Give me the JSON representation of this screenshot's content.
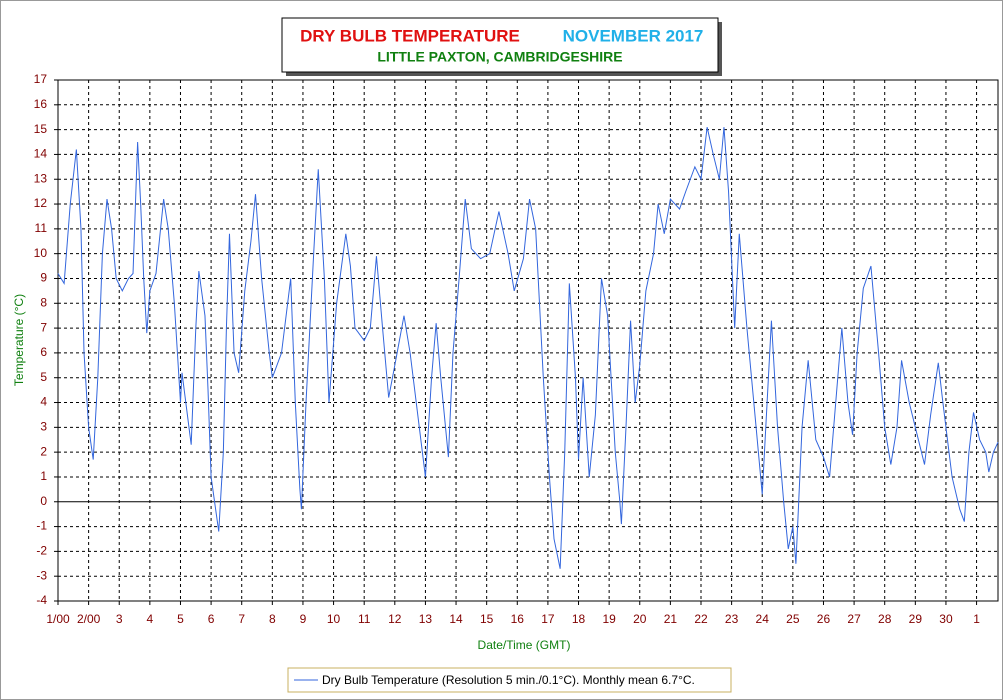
{
  "chart_data": {
    "type": "line",
    "title": "DRY BULB TEMPERATURE",
    "title_period": "NOVEMBER 2017",
    "subtitle": "LITTLE PAXTON, CAMBRIDGESHIRE",
    "x_label": "Date/Time (GMT)",
    "y_label": "Temperature (°C)",
    "xlim": [
      0,
      30.7
    ],
    "xticks": [
      {
        "value": 0,
        "label": "1/00"
      },
      {
        "value": 1,
        "label": "2/00"
      },
      {
        "value": 2,
        "label": "3"
      },
      {
        "value": 3,
        "label": "4"
      },
      {
        "value": 4,
        "label": "5"
      },
      {
        "value": 5,
        "label": "6"
      },
      {
        "value": 6,
        "label": "7"
      },
      {
        "value": 7,
        "label": "8"
      },
      {
        "value": 8,
        "label": "9"
      },
      {
        "value": 9,
        "label": "10"
      },
      {
        "value": 10,
        "label": "11"
      },
      {
        "value": 11,
        "label": "12"
      },
      {
        "value": 12,
        "label": "13"
      },
      {
        "value": 13,
        "label": "14"
      },
      {
        "value": 14,
        "label": "15"
      },
      {
        "value": 15,
        "label": "16"
      },
      {
        "value": 16,
        "label": "17"
      },
      {
        "value": 17,
        "label": "18"
      },
      {
        "value": 18,
        "label": "19"
      },
      {
        "value": 19,
        "label": "20"
      },
      {
        "value": 20,
        "label": "21"
      },
      {
        "value": 21,
        "label": "22"
      },
      {
        "value": 22,
        "label": "23"
      },
      {
        "value": 23,
        "label": "24"
      },
      {
        "value": 24,
        "label": "25"
      },
      {
        "value": 25,
        "label": "26"
      },
      {
        "value": 26,
        "label": "27"
      },
      {
        "value": 27,
        "label": "28"
      },
      {
        "value": 28,
        "label": "29"
      },
      {
        "value": 29,
        "label": "30"
      },
      {
        "value": 30,
        "label": "1"
      }
    ],
    "ylim": [
      -4,
      17
    ],
    "yticks": [
      -4,
      -3,
      -2,
      -1,
      0,
      1,
      2,
      3,
      4,
      5,
      6,
      7,
      8,
      9,
      10,
      11,
      12,
      13,
      14,
      15,
      16,
      17
    ],
    "grid": true,
    "x": [
      0,
      0.2,
      0.4,
      0.6,
      0.75,
      0.85,
      1.0,
      1.15,
      1.3,
      1.45,
      1.6,
      1.75,
      1.9,
      2.1,
      2.3,
      2.45,
      2.6,
      2.7,
      2.8,
      2.9,
      3.0,
      3.2,
      3.35,
      3.45,
      3.6,
      3.8,
      4.0,
      4.05,
      4.35,
      4.5,
      4.6,
      4.8,
      4.9,
      5.0,
      5.25,
      5.4,
      5.5,
      5.6,
      5.75,
      5.9,
      6.1,
      6.3,
      6.45,
      6.65,
      6.9,
      7.0,
      7.3,
      7.5,
      7.6,
      7.75,
      7.9,
      7.95,
      8.1,
      8.35,
      8.5,
      8.7,
      8.85,
      9.1,
      9.4,
      9.55,
      9.7,
      10.0,
      10.2,
      10.4,
      10.6,
      10.8,
      11.0,
      11.3,
      11.5,
      11.8,
      12.0,
      12.2,
      12.35,
      12.5,
      12.75,
      12.9,
      13.1,
      13.3,
      13.5,
      13.8,
      14.1,
      14.4,
      14.7,
      14.9,
      15.2,
      15.4,
      15.6,
      15.85,
      16.05,
      16.2,
      16.4,
      16.55,
      16.7,
      16.9,
      17.0,
      17.15,
      17.35,
      17.55,
      17.75,
      17.95,
      18.2,
      18.35,
      18.4,
      18.55,
      18.7,
      18.85,
      19.0,
      19.2,
      19.45,
      19.6,
      19.8,
      20.0,
      20.3,
      20.5,
      20.8,
      21.0,
      21.2,
      21.4,
      21.6,
      21.75,
      21.9,
      22.1,
      22.25,
      22.5,
      22.8,
      23.0,
      23.3,
      23.5,
      23.7,
      23.85,
      24.0,
      24.1,
      24.3,
      24.5,
      24.75,
      25.0,
      25.2,
      25.4,
      25.6,
      25.8,
      25.95,
      26.1,
      26.3,
      26.55,
      26.8,
      27.0,
      27.2,
      27.4,
      27.55,
      27.8,
      28.0,
      28.3,
      28.5,
      28.75,
      28.9,
      29.2,
      29.45,
      29.6,
      29.75,
      29.9,
      30.1,
      30.3,
      30.4,
      30.55,
      30.7
    ],
    "series": [
      {
        "name": "Dry Bulb Temperature (Resolution 5 min./0.1°C). Monthly mean 6.7°C.",
        "color": "#3366dd",
        "values": [
          9.2,
          8.8,
          12,
          14.2,
          11,
          6,
          3,
          1.7,
          5,
          10,
          12.2,
          11,
          9,
          8.5,
          9,
          9.2,
          14.5,
          12,
          9,
          6.8,
          8.5,
          9.2,
          11,
          12.2,
          11,
          8,
          4,
          5.2,
          2.3,
          7,
          9.3,
          7.5,
          4.5,
          1,
          -1.2,
          2,
          7,
          10.8,
          6,
          5.2,
          8.5,
          10.5,
          12.4,
          9,
          6,
          5,
          6,
          8,
          9,
          4,
          0.5,
          -0.3,
          4,
          10,
          13.4,
          9,
          4,
          8,
          10.8,
          9.5,
          7,
          6.5,
          7,
          9.9,
          7,
          4.2,
          5.5,
          7.5,
          6,
          3,
          1,
          5,
          7.2,
          5,
          1.8,
          6,
          9,
          12.2,
          10.2,
          9.8,
          10,
          11.7,
          10,
          8.5,
          9.8,
          12.2,
          11,
          5,
          1,
          -1.5,
          -2.7,
          2,
          8.8,
          5,
          1.7,
          5,
          1,
          3.5,
          9,
          7.5,
          2,
          0,
          -0.9,
          3,
          7.3,
          4,
          5.5,
          8.5,
          10,
          12,
          10.8,
          12.2,
          11.8,
          12.5,
          13.5,
          13,
          15.1,
          14,
          13,
          15.1,
          12.5,
          7,
          10.8,
          7,
          3,
          0.3,
          7.3,
          3,
          0,
          -1.9,
          -1,
          -2.5,
          3,
          5.7,
          2.5,
          1.8,
          1,
          4,
          7,
          4,
          2.7,
          6,
          8.6,
          9.5,
          6,
          3,
          1.5,
          3,
          5.7,
          4,
          3,
          1.5,
          3.5,
          5.6,
          4,
          1,
          -0.3,
          -0.8,
          2,
          3.6,
          2.5,
          2,
          1.2,
          2,
          2.4
        ]
      }
    ]
  }
}
